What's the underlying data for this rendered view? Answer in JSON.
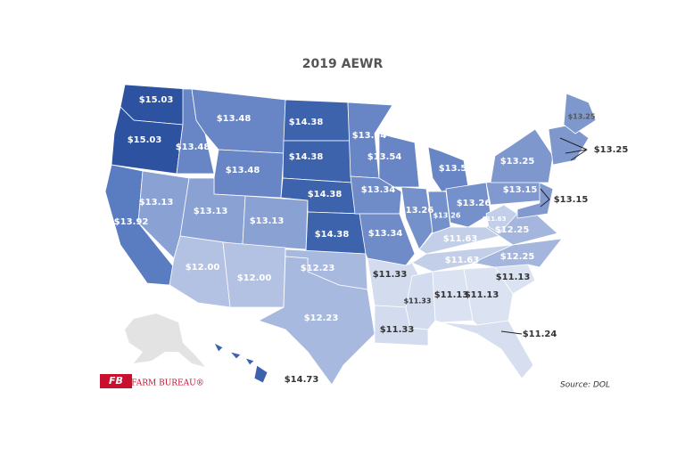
{
  "title": "2019 AEWR",
  "states": [
    {
      "id": "WA",
      "label": "$15.03",
      "color": "#2d52a0"
    },
    {
      "id": "OR",
      "label": "$15.03",
      "color": "#2d52a0"
    },
    {
      "id": "CA",
      "label": "$13.92",
      "color": "#5a7cc0"
    },
    {
      "id": "NV",
      "label": "$13.13",
      "color": "#8aa1d3"
    },
    {
      "id": "ID",
      "label": "$13.48",
      "color": "#6886c5"
    },
    {
      "id": "MT",
      "label": "$13.48",
      "color": "#6886c5"
    },
    {
      "id": "WY",
      "label": "$13.48",
      "color": "#6886c5"
    },
    {
      "id": "UT",
      "label": "$13.13",
      "color": "#8aa1d3"
    },
    {
      "id": "CO",
      "label": "$13.13",
      "color": "#8aa1d3"
    },
    {
      "id": "AZ",
      "label": "$12.00",
      "color": "#b3c2e3"
    },
    {
      "id": "NM",
      "label": "$12.00",
      "color": "#b3c2e3"
    },
    {
      "id": "ND",
      "label": "$14.38",
      "color": "#3e63ad"
    },
    {
      "id": "SD",
      "label": "$14.38",
      "color": "#3e63ad"
    },
    {
      "id": "NE",
      "label": "$14.38",
      "color": "#3e63ad"
    },
    {
      "id": "KS",
      "label": "$14.38",
      "color": "#3e63ad"
    },
    {
      "id": "OK",
      "label": "$12.23",
      "color": "#a8b9df"
    },
    {
      "id": "TX",
      "label": "$12.23",
      "color": "#a8b9df"
    },
    {
      "id": "MN",
      "label": "$13.54",
      "color": "#6886c5"
    },
    {
      "id": "WI",
      "label": "$13.54",
      "color": "#6886c5"
    },
    {
      "id": "MI",
      "label": "$13.54",
      "color": "#6886c5"
    },
    {
      "id": "IA",
      "label": "$13.34",
      "color": "#6f8cc8"
    },
    {
      "id": "MO",
      "label": "$13.34",
      "color": "#6f8cc8"
    },
    {
      "id": "IL",
      "label": "$13.26",
      "color": "#7591cb"
    },
    {
      "id": "IN",
      "label": "$13.26",
      "color": "#7591cb"
    },
    {
      "id": "OH",
      "label": "$13.26",
      "color": "#7591cb"
    },
    {
      "id": "KY",
      "label": "$11.63",
      "color": "#c3cfe8"
    },
    {
      "id": "TN",
      "label": "$11.63",
      "color": "#c3cfe8"
    },
    {
      "id": "AR",
      "label": "$11.33",
      "color": "#d3dcee"
    },
    {
      "id": "LA",
      "label": "$11.33",
      "color": "#d3dcee"
    },
    {
      "id": "MS",
      "label": "$11.33",
      "color": "#d3dcee"
    },
    {
      "id": "AL",
      "label": "$11.13",
      "color": "#dbe2f1"
    },
    {
      "id": "GA",
      "label": "$11.13",
      "color": "#dbe2f1"
    },
    {
      "id": "FL",
      "label": "$11.24",
      "color": "#d6def0"
    },
    {
      "id": "SC",
      "label": "$11.13",
      "color": "#dbe2f1"
    },
    {
      "id": "NC",
      "label": "$12.25",
      "color": "#a4b6dd"
    },
    {
      "id": "VA",
      "label": "$12.25",
      "color": "#a4b6dd"
    },
    {
      "id": "WV",
      "label": "$11.63",
      "color": "#c3cfe8"
    },
    {
      "id": "PA",
      "label": "$13.15",
      "color": "#8199cf"
    },
    {
      "id": "NY",
      "label": "$13.25",
      "color": "#7e98ce"
    },
    {
      "id": "NJ",
      "label": "$13.15",
      "color": "#8199cf"
    },
    {
      "id": "NE-states",
      "label": "$13.25",
      "color": "#7e98ce"
    },
    {
      "id": "ME",
      "label": "$13.25",
      "color": "#7e98ce"
    },
    {
      "id": "HI",
      "label": "$14.73",
      "color": "#3d62ad"
    }
  ],
  "source": "Source: DOL",
  "logo": "FARM BUREAU®"
}
